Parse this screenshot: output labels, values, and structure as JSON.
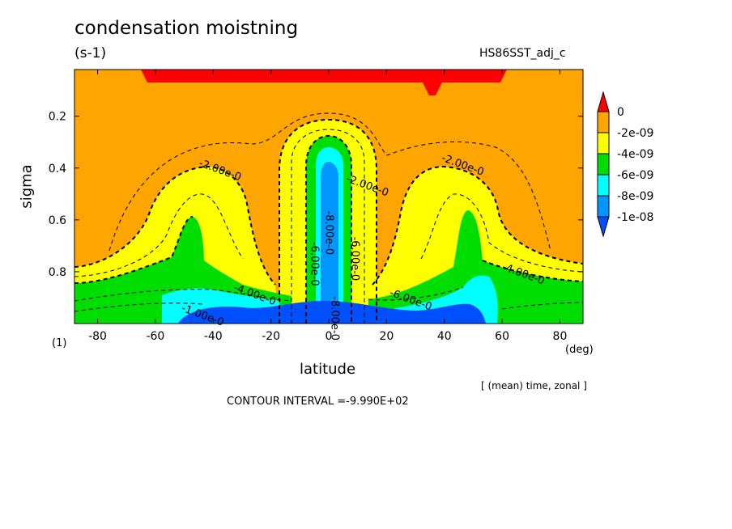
{
  "title": "condensation moistning",
  "units": "(s-1)",
  "dataset": "HS86SST_adj_c",
  "footer": {
    "aggregation": "[ (mean) time, zonal ]",
    "contour_interval": "CONTOUR INTERVAL =-9.990E+02",
    "axis_index": "(1)"
  },
  "chart_data": {
    "type": "heatmap",
    "xlabel": "latitude",
    "xunits": "(deg)",
    "ylabel": "sigma",
    "xlim": [
      -88,
      88
    ],
    "ylim": [
      1.0,
      0.02
    ],
    "xticks": [
      -80,
      -60,
      -40,
      -20,
      0,
      20,
      40,
      60,
      80
    ],
    "yticks": [
      0.2,
      0.4,
      0.6,
      0.8
    ],
    "colorbar": {
      "labels": [
        "0",
        "-2e-09",
        "-4e-09",
        "-6e-09",
        "-8e-09",
        "-1e-08"
      ],
      "colors": [
        "#ff0000",
        "#ffa500",
        "#ffff00",
        "#00dd00",
        "#00ffff",
        "#0096ff",
        "#0050ff"
      ]
    },
    "contour_labels": [
      {
        "text": "-2.00e-0",
        "x": -38,
        "y": 0.42
      },
      {
        "text": "-2.00e-0",
        "x": 13,
        "y": 0.48
      },
      {
        "text": "-2.00e-0",
        "x": 46,
        "y": 0.4
      },
      {
        "text": "-4.00e-0",
        "x": 67,
        "y": 0.82
      },
      {
        "text": "-4.00e-0",
        "x": -26,
        "y": 0.9
      },
      {
        "text": "-8.00e-0",
        "x": -1,
        "y": 0.65
      },
      {
        "text": "-6.00e-0",
        "x": -6,
        "y": 0.77
      },
      {
        "text": "-6.00e-0",
        "x": 8,
        "y": 0.75
      },
      {
        "text": "-6.00e-0",
        "x": 28,
        "y": 0.92
      },
      {
        "text": "-1.00e-0",
        "x": -44,
        "y": 0.98
      },
      {
        "text": "-8.00e-0",
        "x": 1,
        "y": 0.98
      }
    ]
  }
}
